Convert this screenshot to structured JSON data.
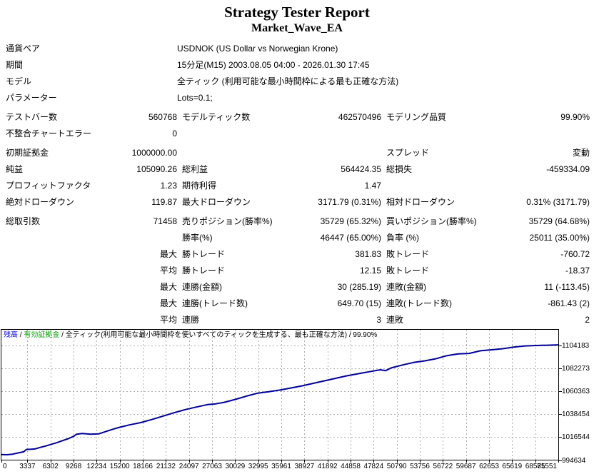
{
  "header": {
    "title": "Strategy Tester Report",
    "subtitle": "Market_Wave_EA"
  },
  "table": {
    "rows": [
      {
        "type": "info",
        "label": "通貨ペア",
        "value": "USDNOK (US Dollar vs Norwegian Krone)"
      },
      {
        "type": "info",
        "label": "期間",
        "value": "15分足(M15) 2003.08.05 04:00 - 2026.01.30 17:45"
      },
      {
        "type": "info",
        "label": "モデル",
        "value": "全ティック (利用可能な最小時間枠による最も正確な方法)"
      },
      {
        "type": "info",
        "label": "パラメーター",
        "value": "Lots=0.1;"
      },
      {
        "gap": true,
        "cells": [
          "テストバー数",
          "560768",
          "モデルティック数",
          "462570496",
          "モデリング品質",
          "99.90%"
        ]
      },
      {
        "cells": [
          "不整合チャートエラー",
          "0",
          "",
          "",
          "",
          ""
        ]
      },
      {
        "gap": true,
        "cells": [
          "初期証拠金",
          "1000000.00",
          "",
          "",
          "スプレッド",
          "変動"
        ]
      },
      {
        "cells": [
          "純益",
          "105090.26",
          "総利益",
          "564424.35",
          "総損失",
          "-459334.09"
        ]
      },
      {
        "cells": [
          "プロフィットファクタ",
          "1.23",
          "期待利得",
          "1.47",
          "",
          ""
        ]
      },
      {
        "cells": [
          "絶対ドローダウン",
          "119.87",
          "最大ドローダウン",
          "3171.79 (0.31%)",
          "相対ドローダウン",
          "0.31% (3171.79)"
        ]
      },
      {
        "gap": true,
        "cells": [
          "総取引数",
          "71458",
          "売りポジション(勝率%)",
          "35729 (65.32%)",
          "買いポジション(勝率%)",
          "35729 (64.68%)"
        ]
      },
      {
        "cells": [
          "",
          "",
          "勝率(%)",
          "46447 (65.00%)",
          "負率 (%)",
          "25011 (35.00%)"
        ]
      },
      {
        "cells": [
          "",
          "最大",
          "勝トレード",
          "381.83",
          "敗トレード",
          "-760.72"
        ]
      },
      {
        "cells": [
          "",
          "平均",
          "勝トレード",
          "12.15",
          "敗トレード",
          "-18.37"
        ]
      },
      {
        "cells": [
          "",
          "最大",
          "連勝(金額)",
          "30 (285.19)",
          "連敗(金額)",
          "11 (-113.45)"
        ]
      },
      {
        "cells": [
          "",
          "最大",
          "連勝(トレード数)",
          "649.70 (15)",
          "連敗(トレード数)",
          "-861.43 (2)"
        ]
      },
      {
        "cells": [
          "",
          "平均",
          "連勝",
          "3",
          "連敗",
          "2"
        ]
      }
    ]
  },
  "chart_data": {
    "type": "line",
    "legend": [
      {
        "label": "残高",
        "color": "#0000E0"
      },
      {
        "label": "有効証拠金",
        "color": "#00A000"
      },
      {
        "label": "全ティック(利用可能な最小時間枠を使いすべてのティックを生成する、最も正確な方法)",
        "color": "#000000"
      },
      {
        "label": "99.90%",
        "color": "#000000"
      }
    ],
    "legend_separator": " / ",
    "line_color": "#00009B",
    "grid_color": "#ACACAC",
    "axis_color": "#000000",
    "xlim": [
      0,
      71551
    ],
    "ylim": [
      994634,
      1119900
    ],
    "x_ticks": [
      0,
      3337,
      6302,
      9268,
      12234,
      15200,
      18166,
      21132,
      24097,
      27063,
      30029,
      32995,
      35961,
      38927,
      41892,
      44858,
      47824,
      50790,
      53756,
      56722,
      59687,
      62653,
      65619,
      68585,
      71551
    ],
    "y_ticks": [
      994634,
      1016544,
      1038454,
      1060363,
      1082273,
      1104183
    ],
    "series": [
      {
        "name": "残高",
        "points": [
          [
            0,
            1000000
          ],
          [
            700,
            999800
          ],
          [
            1430,
            1000300
          ],
          [
            2150,
            1001500
          ],
          [
            2860,
            1002600
          ],
          [
            3200,
            1004800
          ],
          [
            3900,
            1005100
          ],
          [
            4290,
            1005300
          ],
          [
            5000,
            1006800
          ],
          [
            5720,
            1008200
          ],
          [
            6440,
            1009800
          ],
          [
            7160,
            1011500
          ],
          [
            7870,
            1013300
          ],
          [
            8590,
            1015200
          ],
          [
            9300,
            1017500
          ],
          [
            9660,
            1019500
          ],
          [
            10380,
            1020200
          ],
          [
            11450,
            1019400
          ],
          [
            12520,
            1019800
          ],
          [
            13600,
            1022500
          ],
          [
            14310,
            1024200
          ],
          [
            15030,
            1025800
          ],
          [
            16460,
            1028400
          ],
          [
            17890,
            1030600
          ],
          [
            19320,
            1033500
          ],
          [
            20750,
            1036800
          ],
          [
            22180,
            1040000
          ],
          [
            23610,
            1043000
          ],
          [
            25040,
            1045500
          ],
          [
            26470,
            1047800
          ],
          [
            27550,
            1048600
          ],
          [
            28620,
            1050000
          ],
          [
            30050,
            1052800
          ],
          [
            31480,
            1056000
          ],
          [
            32910,
            1058800
          ],
          [
            34340,
            1060200
          ],
          [
            35780,
            1061800
          ],
          [
            37210,
            1063800
          ],
          [
            38640,
            1065800
          ],
          [
            40070,
            1068200
          ],
          [
            41500,
            1070600
          ],
          [
            42930,
            1073000
          ],
          [
            44360,
            1075400
          ],
          [
            45790,
            1077400
          ],
          [
            47220,
            1079300
          ],
          [
            48660,
            1081200
          ],
          [
            49370,
            1080400
          ],
          [
            50090,
            1083000
          ],
          [
            51520,
            1085800
          ],
          [
            52950,
            1088200
          ],
          [
            54380,
            1089800
          ],
          [
            55810,
            1091800
          ],
          [
            57240,
            1094800
          ],
          [
            58670,
            1096400
          ],
          [
            60100,
            1096900
          ],
          [
            61530,
            1099400
          ],
          [
            62970,
            1100400
          ],
          [
            64400,
            1101400
          ],
          [
            65830,
            1103000
          ],
          [
            67260,
            1104100
          ],
          [
            68690,
            1104500
          ],
          [
            70120,
            1104800
          ],
          [
            71551,
            1105090
          ]
        ]
      }
    ]
  }
}
